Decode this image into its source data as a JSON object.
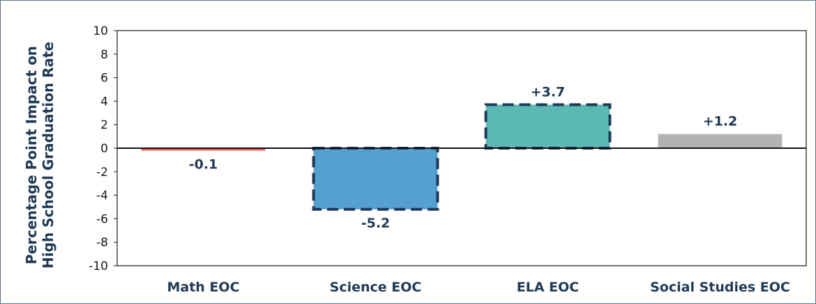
{
  "chart_data": {
    "type": "bar",
    "title": "",
    "xlabel": "",
    "ylabel_lines": [
      "Percentage Point Impact on",
      "High School Graduation Rate"
    ],
    "categories": [
      "Math EOC",
      "Science EOC",
      "ELA EOC",
      "Social Studies EOC"
    ],
    "values": [
      -0.1,
      -5.2,
      3.7,
      1.2
    ],
    "data_labels": [
      "-0.1",
      "-5.2",
      "+3.7",
      "+1.2"
    ],
    "bar_colors": [
      "#e8615a",
      "#569fd1",
      "#5cb8b3",
      "#b3b3b3"
    ],
    "bar_dashed_border": [
      false,
      true,
      true,
      false
    ],
    "border_color": "#1e3b5a",
    "ylim": [
      -10,
      10
    ],
    "yticks": [
      -10,
      -8,
      -6,
      -4,
      -2,
      0,
      2,
      4,
      6,
      8,
      10
    ],
    "grid": false,
    "legend": "none"
  }
}
